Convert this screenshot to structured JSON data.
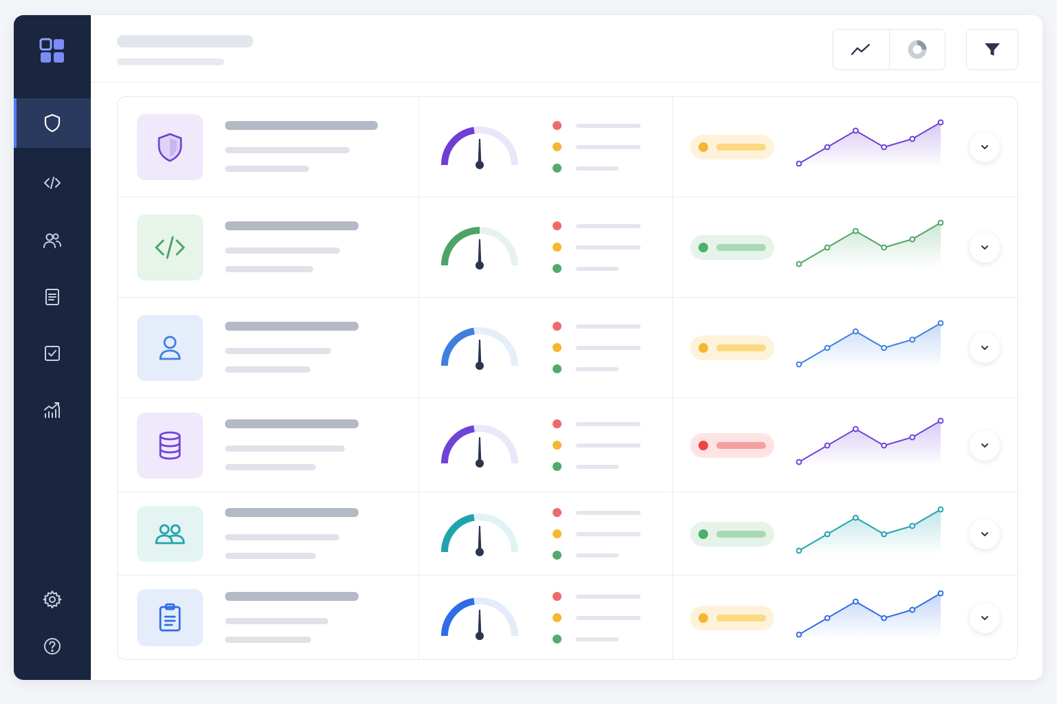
{
  "sidebar": {
    "logo": "dashboard-grid-icon",
    "nav_items": [
      {
        "icon": "shield-icon",
        "active": true
      },
      {
        "icon": "code-icon",
        "active": false
      },
      {
        "icon": "users-icon",
        "active": false
      },
      {
        "icon": "document-icon",
        "active": false
      },
      {
        "icon": "checkbox-icon",
        "active": false
      },
      {
        "icon": "analytics-icon",
        "active": false
      }
    ],
    "bottom_items": [
      {
        "icon": "gear-icon"
      },
      {
        "icon": "help-icon"
      }
    ]
  },
  "header": {
    "view_buttons": [
      {
        "icon": "line-chart-icon"
      },
      {
        "icon": "donut-chart-icon"
      }
    ],
    "filter_button": {
      "icon": "filter-icon"
    }
  },
  "colors": {
    "sidebar_bg": "#1a2540",
    "accent": "#4f7df3",
    "status_warning": "#f5b731",
    "status_success": "#4caf6e",
    "status_error": "#ef4444"
  },
  "rows": [
    {
      "icon": "shield-icon",
      "tile_bg": "#efe9fb",
      "accent": "#6d3fd4",
      "gauge_level": 0.45,
      "status": "warning",
      "trend": [
        3,
        5,
        7,
        5,
        6,
        8
      ]
    },
    {
      "icon": "code-icon",
      "tile_bg": "#e7f4ea",
      "accent": "#4ba565",
      "gauge_level": 0.5,
      "status": "success",
      "trend": [
        3,
        5,
        7,
        5,
        6,
        8
      ]
    },
    {
      "icon": "user-icon",
      "tile_bg": "#e5edfb",
      "accent": "#3f7fe0",
      "gauge_level": 0.45,
      "status": "warning",
      "trend": [
        3,
        5,
        7,
        5,
        6,
        8
      ]
    },
    {
      "icon": "database-icon",
      "tile_bg": "#efe9fb",
      "accent": "#7043d8",
      "gauge_level": 0.45,
      "status": "error",
      "trend": [
        3,
        5,
        7,
        5,
        6,
        8
      ]
    },
    {
      "icon": "team-icon",
      "tile_bg": "#e3f4f3",
      "accent": "#20a3ad",
      "gauge_level": 0.45,
      "status": "success",
      "trend": [
        3,
        5,
        7,
        5,
        6,
        8
      ]
    },
    {
      "icon": "clipboard-icon",
      "tile_bg": "#e5edfb",
      "accent": "#2f6de6",
      "gauge_level": 0.45,
      "status": "warning",
      "trend": [
        3,
        5,
        7,
        5,
        6,
        8
      ]
    }
  ]
}
